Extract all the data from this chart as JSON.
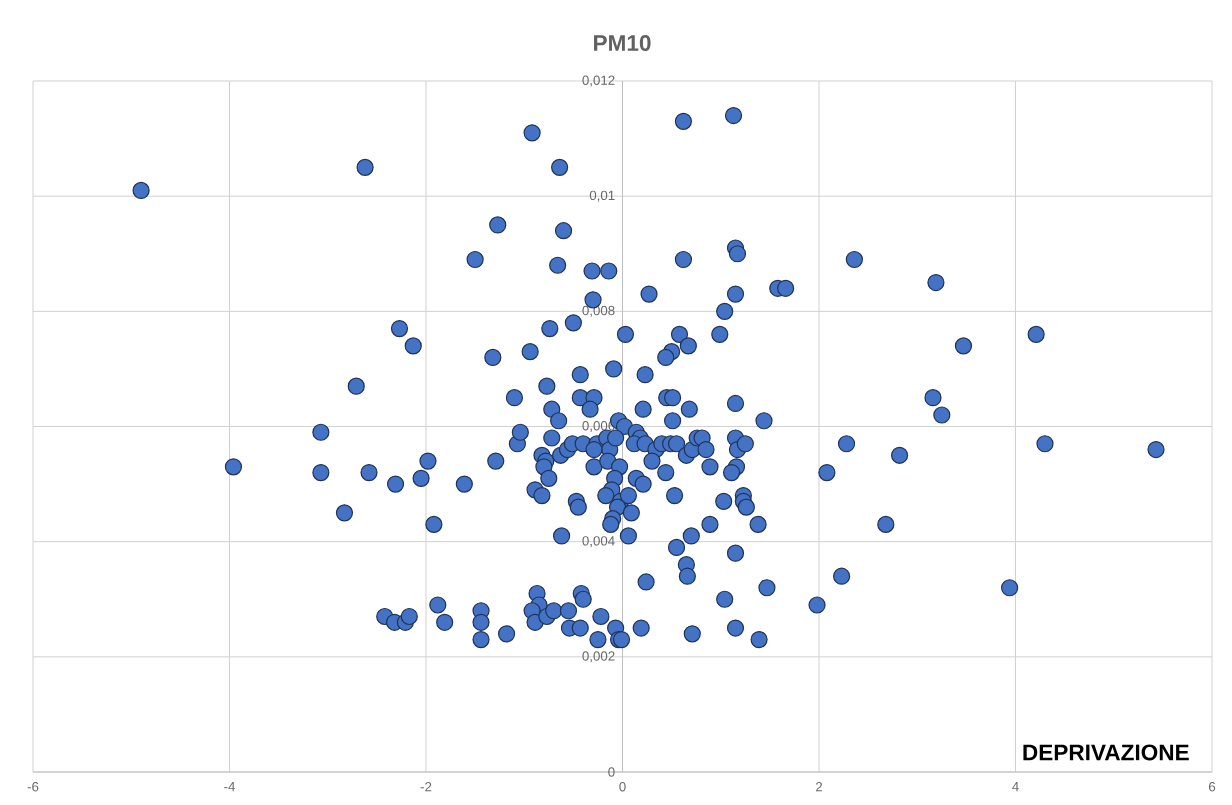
{
  "chart_data": {
    "type": "scatter",
    "title": "PM10",
    "xlabel": "DEPRIVAZIONE",
    "xlim": [
      -6,
      6
    ],
    "xticks": [
      -6,
      -4,
      -2,
      0,
      2,
      4,
      6
    ],
    "ylim": [
      0,
      0.012
    ],
    "yticks": [
      {
        "value": 0,
        "label": "0"
      },
      {
        "value": 0.002,
        "label": "0,002"
      },
      {
        "value": 0.004,
        "label": "0,004"
      },
      {
        "value": 0.006,
        "label": "0,006"
      },
      {
        "value": 0.008,
        "label": "0,008"
      },
      {
        "value": 0.01,
        "label": "0,01"
      },
      {
        "value": 0.012,
        "label": "0,012"
      }
    ],
    "grid": true,
    "marker": "circle",
    "series": [
      {
        "color": "#4472c4",
        "x": [
          -4.9,
          -2.62,
          -0.92,
          -0.64,
          0.62,
          1.13,
          -1.27,
          -0.6,
          -1.5,
          -0.66,
          -0.31,
          -0.14,
          -0.3,
          1.15,
          1.17,
          0.62,
          0.27,
          1.15,
          1.58,
          1.66,
          2.36,
          3.19,
          -2.27,
          -2.13,
          -2.71,
          -1.32,
          -0.94,
          -0.74,
          -0.5,
          0.03,
          -0.09,
          0.58,
          0.5,
          0.67,
          0.44,
          1.04,
          0.99,
          4.21,
          3.47,
          0.23,
          -0.43,
          -0.77,
          -1.1,
          -0.43,
          -0.29,
          -0.72,
          -0.33,
          -0.65,
          0.21,
          0.45,
          0.51,
          0.51,
          0.68,
          1.15,
          1.44,
          3.16,
          3.25,
          -3.07,
          -3.96,
          -3.07,
          -2.58,
          -2.31,
          -1.98,
          -2.05,
          -1.61,
          -2.83,
          -1.92,
          -1.29,
          -1.07,
          -1.04,
          -0.72,
          -0.82,
          -0.78,
          -0.8,
          -0.75,
          -0.89,
          -0.82,
          -0.63,
          -0.56,
          -0.51,
          -0.4,
          -0.26,
          -0.16,
          -0.04,
          0.02,
          -0.13,
          -0.29,
          -0.29,
          -0.15,
          -0.03,
          -0.07,
          0.14,
          0.18,
          0.12,
          0.23,
          0.34,
          0.3,
          0.4,
          0.49,
          0.55,
          0.65,
          0.71,
          0.76,
          0.81,
          0.85,
          0.89,
          1.15,
          1.17,
          1.25,
          1.16,
          1.11,
          0.44,
          -0.08,
          0.14,
          -0.11,
          -0.17,
          -0.02,
          0.06,
          0.21,
          -0.05,
          -0.1,
          0.09,
          -0.47,
          -0.45,
          0.53,
          1.03,
          1.23,
          1.23,
          1.26,
          0.89,
          1.38,
          0.7,
          0.06,
          -0.62,
          -0.12,
          -2.42,
          -2.32,
          -2.21,
          -2.17,
          -1.88,
          -1.81,
          -1.44,
          -1.44,
          -1.44,
          -1.18,
          -0.87,
          -0.85,
          -0.92,
          -0.89,
          -0.77,
          -0.7,
          -0.55,
          -0.54,
          -0.43,
          -0.42,
          -0.4,
          -0.22,
          -0.25,
          -0.07,
          -0.04,
          -0.01,
          0.19,
          0.24,
          0.55,
          0.65,
          0.66,
          1.15,
          1.04,
          1.47,
          0.71,
          1.15,
          1.39,
          1.98,
          2.23,
          2.68,
          2.82,
          2.08,
          2.28,
          3.94,
          4.3,
          5.43
        ],
        "values": [
          0.0101,
          0.0105,
          0.0111,
          0.0105,
          0.0113,
          0.0114,
          0.0095,
          0.0094,
          0.0089,
          0.0088,
          0.0087,
          0.0087,
          0.0082,
          0.0091,
          0.009,
          0.0089,
          0.0083,
          0.0083,
          0.0084,
          0.0084,
          0.0089,
          0.0085,
          0.0077,
          0.0074,
          0.0067,
          0.0072,
          0.0073,
          0.0077,
          0.0078,
          0.0076,
          0.007,
          0.0076,
          0.0073,
          0.0074,
          0.0072,
          0.008,
          0.0076,
          0.0076,
          0.0074,
          0.0069,
          0.0069,
          0.0067,
          0.0065,
          0.0065,
          0.0065,
          0.0063,
          0.0063,
          0.0061,
          0.0063,
          0.0065,
          0.0065,
          0.0061,
          0.0063,
          0.0064,
          0.0061,
          0.0065,
          0.0062,
          0.0059,
          0.0053,
          0.0052,
          0.0052,
          0.005,
          0.0054,
          0.0051,
          0.005,
          0.0045,
          0.0043,
          0.0054,
          0.0057,
          0.0059,
          0.0058,
          0.0055,
          0.0054,
          0.0053,
          0.0051,
          0.0049,
          0.0048,
          0.0055,
          0.0056,
          0.0057,
          0.0057,
          0.0057,
          0.0058,
          0.0061,
          0.006,
          0.0056,
          0.0056,
          0.0053,
          0.0054,
          0.0053,
          0.0058,
          0.0059,
          0.0058,
          0.0057,
          0.0057,
          0.0056,
          0.0054,
          0.0057,
          0.0057,
          0.0057,
          0.0055,
          0.0056,
          0.0058,
          0.0058,
          0.0056,
          0.0053,
          0.0058,
          0.0056,
          0.0057,
          0.0053,
          0.0052,
          0.0052,
          0.0051,
          0.0051,
          0.0049,
          0.0048,
          0.0047,
          0.0048,
          0.005,
          0.0046,
          0.0044,
          0.0045,
          0.0047,
          0.0046,
          0.0048,
          0.0047,
          0.0048,
          0.0047,
          0.0046,
          0.0043,
          0.0043,
          0.0041,
          0.0041,
          0.0041,
          0.0043,
          0.0027,
          0.0026,
          0.0026,
          0.0027,
          0.0029,
          0.0026,
          0.0028,
          0.0026,
          0.0023,
          0.0024,
          0.0031,
          0.0029,
          0.0028,
          0.0026,
          0.0027,
          0.0028,
          0.0028,
          0.0025,
          0.0025,
          0.0031,
          0.003,
          0.0027,
          0.0023,
          0.0025,
          0.0023,
          0.0023,
          0.0025,
          0.0033,
          0.0039,
          0.0036,
          0.0034,
          0.0038,
          0.003,
          0.0032,
          0.0024,
          0.0025,
          0.0023,
          0.0029,
          0.0034,
          0.0043,
          0.0055,
          0.0052,
          0.0057,
          0.0032,
          0.0057,
          0.0056
        ]
      }
    ]
  }
}
